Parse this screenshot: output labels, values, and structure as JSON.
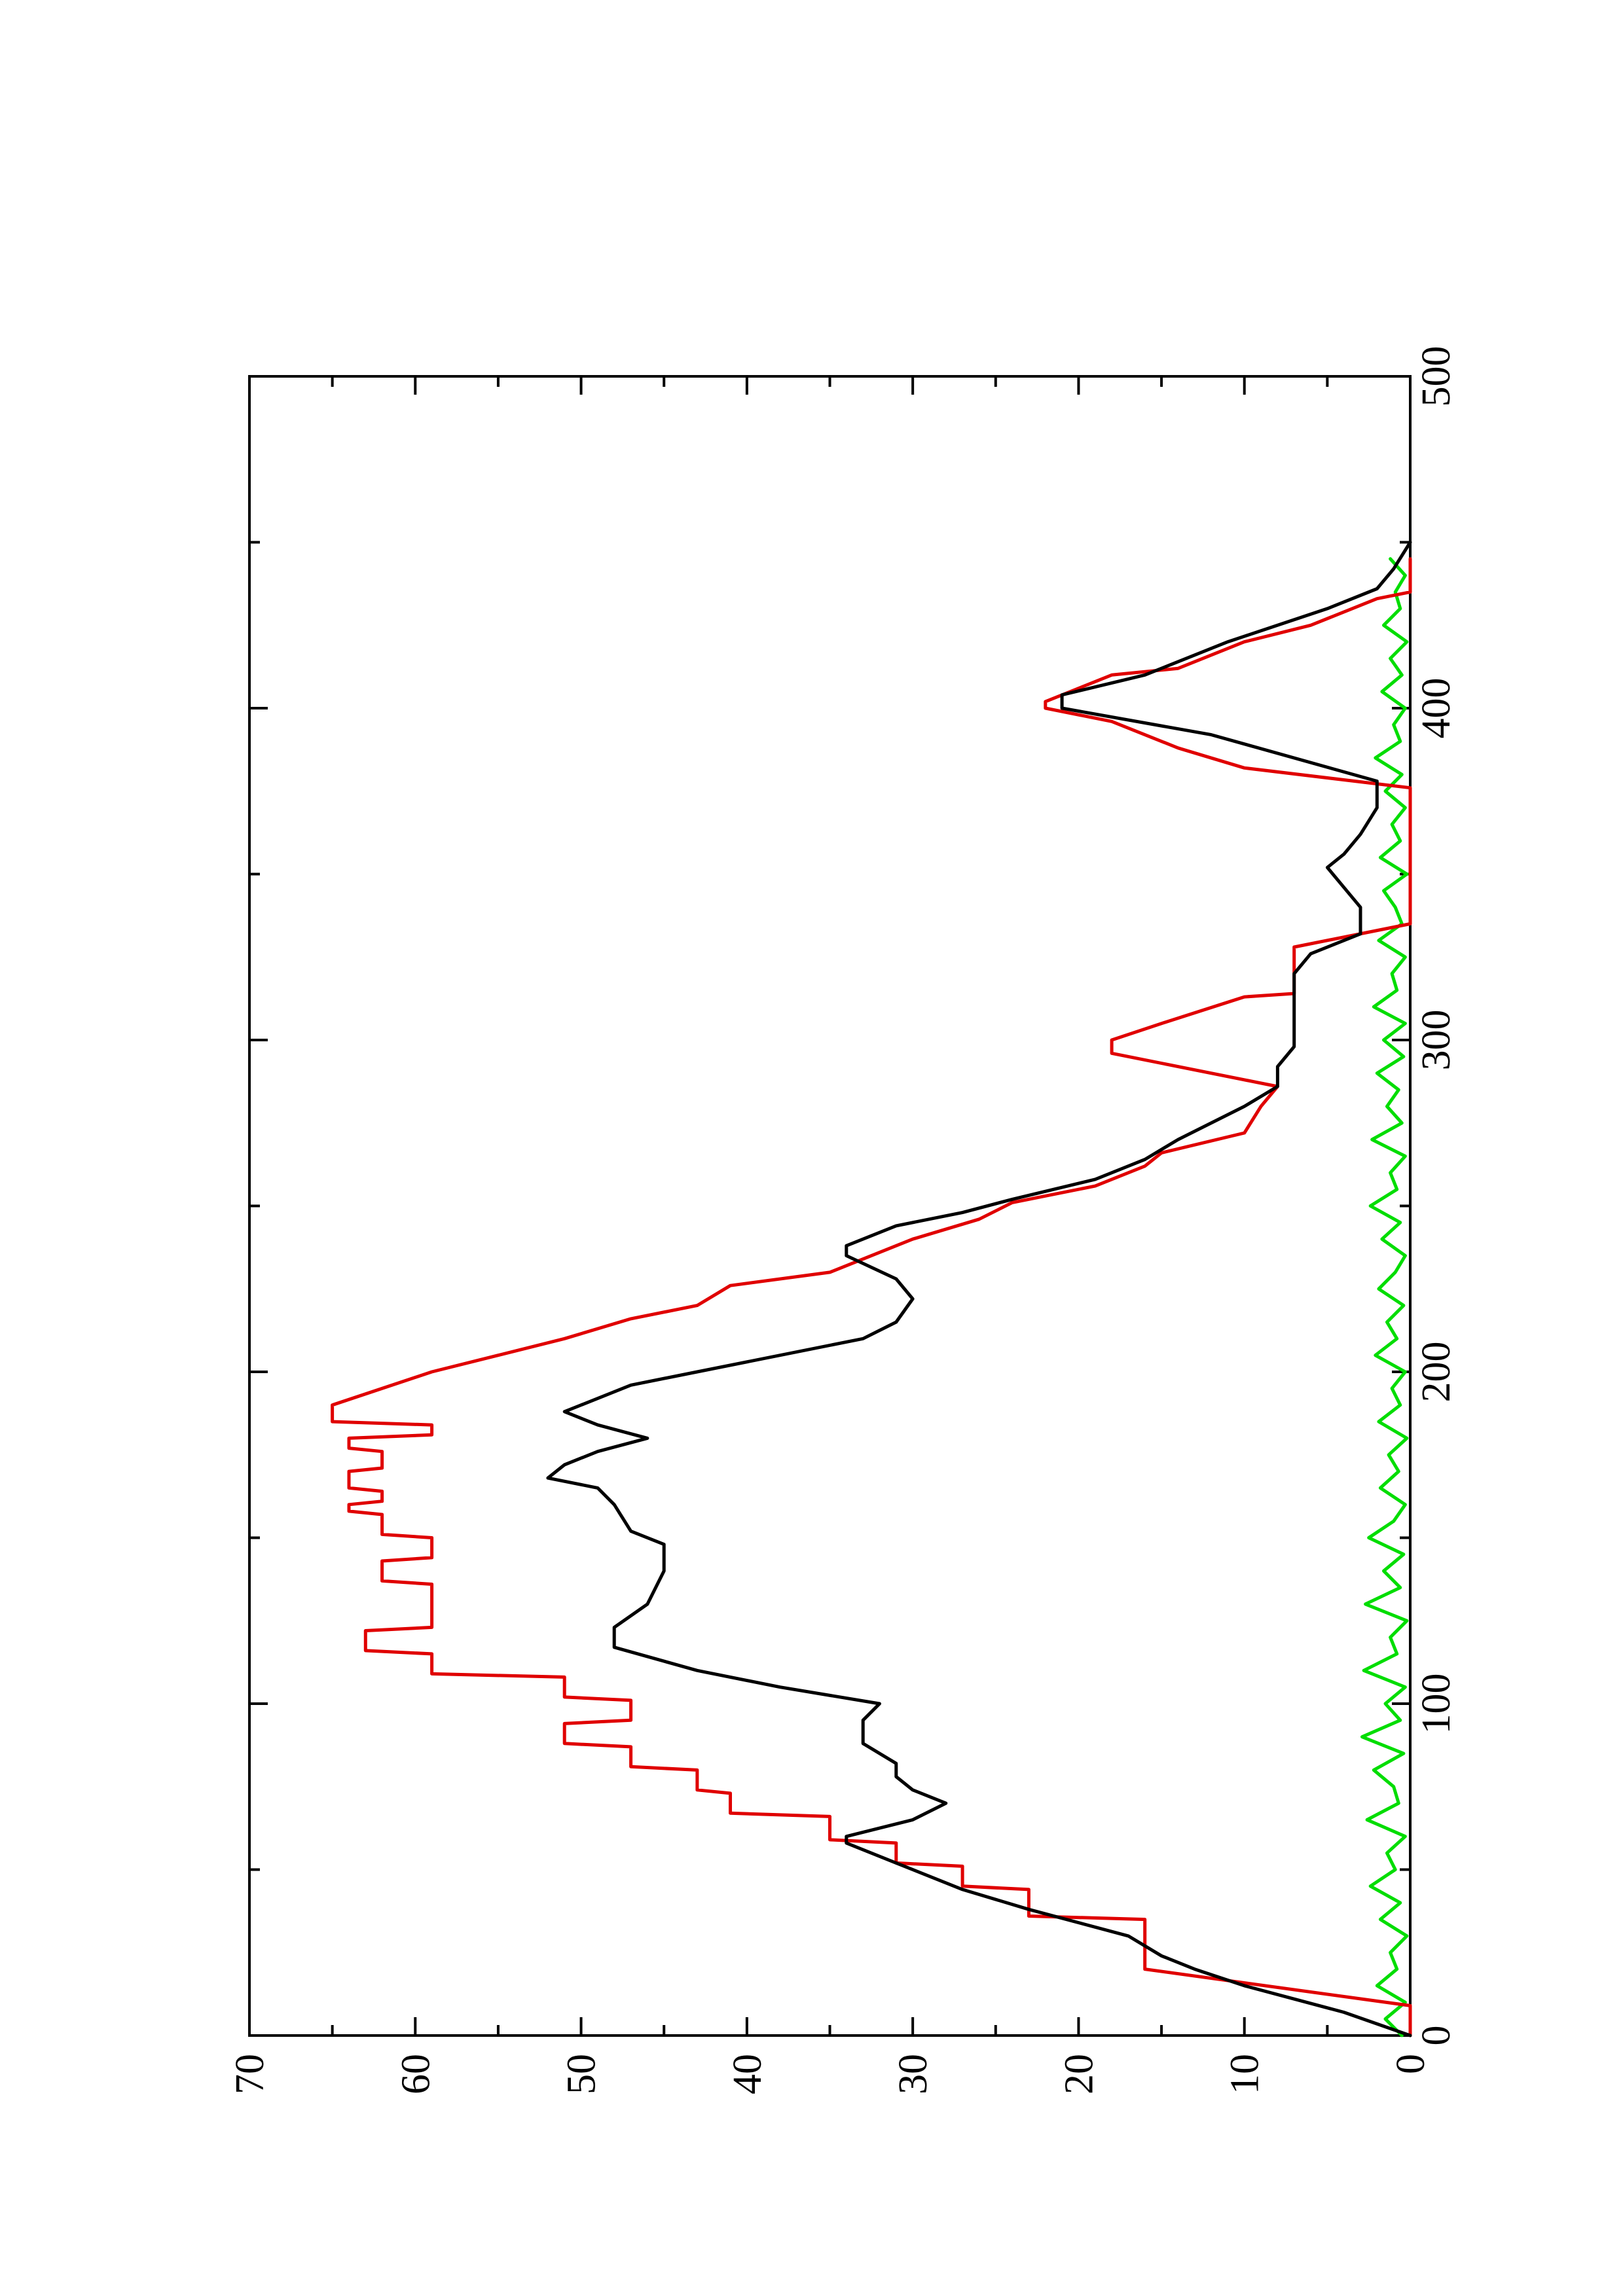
{
  "chart_data": {
    "type": "line",
    "orientation": "rotated-90-ccw",
    "title": "",
    "xlabel": "",
    "ylabel": "",
    "xlim": [
      0,
      500
    ],
    "ylim": [
      0,
      70
    ],
    "x_ticks": [
      "0",
      "100",
      "200",
      "300",
      "400",
      "500"
    ],
    "y_ticks": [
      "0",
      "10",
      "20",
      "30",
      "40",
      "50",
      "60",
      "70"
    ],
    "grid": false,
    "legend": "none",
    "series": [
      {
        "color": "#e00000",
        "x": [
          0,
          9,
          20,
          35,
          36,
          44,
          45,
          51,
          52,
          58,
          59,
          66,
          67,
          73,
          74,
          80,
          81,
          87,
          88,
          94,
          95,
          101,
          102,
          108,
          109,
          115,
          116,
          122,
          123,
          129,
          130,
          136,
          137,
          143,
          144,
          150,
          151,
          157,
          158,
          160,
          161,
          164,
          165,
          170,
          171,
          176,
          177,
          180,
          181,
          184,
          185,
          190,
          200,
          205,
          210,
          216,
          220,
          226,
          230,
          240,
          246,
          251,
          256,
          262,
          266,
          272,
          280,
          286,
          296,
          300,
          305,
          313,
          314,
          327,
          328,
          335,
          340,
          376,
          382,
          388,
          396,
          400,
          402,
          410,
          412,
          420,
          425,
          433,
          435,
          445
        ],
        "y": [
          0,
          0,
          16,
          16,
          23,
          23,
          27,
          27,
          31,
          31,
          35,
          35,
          41,
          41,
          43,
          43,
          47,
          47,
          51,
          51,
          47,
          47,
          51,
          51,
          59,
          59,
          63,
          63,
          59,
          59,
          59,
          59,
          62,
          62,
          59,
          59,
          62,
          62,
          64,
          64,
          62,
          62,
          64,
          64,
          62,
          62,
          64,
          64,
          59,
          59,
          65,
          65,
          59,
          55,
          51,
          47,
          43,
          41,
          35,
          30,
          26,
          24,
          19,
          16,
          15,
          10,
          9,
          8,
          18,
          18,
          15,
          10,
          7,
          7,
          7,
          0,
          0,
          0,
          10,
          14,
          18,
          22,
          22,
          18,
          14,
          10,
          6,
          2,
          0,
          0
        ]
      },
      {
        "color": "#000000",
        "x": [
          0,
          7,
          15,
          20,
          24,
          30,
          38,
          44,
          52,
          58,
          60,
          65,
          70,
          74,
          78,
          82,
          88,
          95,
          100,
          105,
          110,
          117,
          123,
          130,
          140,
          148,
          152,
          160,
          165,
          168,
          172,
          176,
          180,
          184,
          188,
          190,
          196,
          200,
          210,
          215,
          222,
          228,
          235,
          238,
          244,
          248,
          252,
          258,
          264,
          270,
          280,
          286,
          292,
          298,
          305,
          312,
          320,
          326,
          332,
          340,
          346,
          352,
          356,
          362,
          370,
          378,
          392,
          400,
          404,
          410,
          420,
          430,
          436,
          442,
          450
        ],
        "y": [
          0,
          4,
          10,
          13,
          15,
          17,
          23,
          27,
          31,
          34,
          34,
          30,
          28,
          30,
          31,
          31,
          33,
          33,
          32,
          38,
          43,
          48,
          48,
          46,
          45,
          45,
          47,
          48,
          49,
          52,
          51,
          49,
          46,
          49,
          51,
          50,
          47,
          43,
          33,
          31,
          30,
          31,
          34,
          34,
          31,
          27,
          24,
          19,
          16,
          14,
          10,
          8,
          8,
          7,
          7,
          7,
          7,
          6,
          3,
          3,
          4,
          5,
          4,
          3,
          2,
          2,
          12,
          21,
          21,
          16,
          11,
          5,
          2,
          1,
          0
        ]
      },
      {
        "color": "#00dd00",
        "x": [
          0,
          5,
          10,
          15,
          20,
          25,
          30,
          35,
          40,
          45,
          50,
          55,
          60,
          65,
          70,
          75,
          80,
          85,
          90,
          95,
          100,
          105,
          110,
          115,
          120,
          125,
          130,
          135,
          140,
          145,
          150,
          155,
          160,
          165,
          170,
          175,
          180,
          185,
          190,
          195,
          200,
          205,
          210,
          215,
          220,
          225,
          230,
          235,
          240,
          245,
          250,
          255,
          260,
          265,
          270,
          275,
          280,
          285,
          290,
          295,
          300,
          305,
          310,
          315,
          320,
          325,
          330,
          335,
          340,
          345,
          350,
          355,
          360,
          365,
          370,
          375,
          380,
          385,
          390,
          395,
          400,
          405,
          410,
          415,
          420,
          425,
          430,
          435,
          440,
          445
        ],
        "y": [
          0.5,
          1.5,
          0.3,
          2.0,
          0.8,
          1.2,
          0.2,
          1.8,
          0.6,
          2.4,
          0.9,
          1.4,
          0.3,
          2.6,
          0.7,
          1.0,
          2.2,
          0.4,
          2.9,
          0.6,
          1.5,
          0.3,
          2.8,
          0.8,
          1.2,
          0.2,
          2.7,
          0.6,
          1.6,
          0.4,
          2.5,
          1.0,
          0.3,
          1.8,
          0.7,
          1.3,
          0.2,
          1.9,
          0.6,
          1.1,
          0.3,
          2.1,
          0.8,
          1.4,
          0.4,
          1.9,
          0.9,
          0.3,
          1.7,
          0.6,
          2.4,
          0.8,
          1.2,
          0.3,
          2.3,
          0.5,
          1.4,
          0.7,
          2.0,
          0.4,
          1.6,
          0.3,
          2.2,
          0.8,
          1.1,
          0.3,
          1.9,
          0.5,
          0.9,
          1.6,
          0.2,
          1.8,
          0.6,
          1.1,
          0.3,
          1.5,
          0.5,
          2.1,
          0.6,
          1.0,
          0.3,
          1.7,
          0.5,
          1.2,
          0.2,
          1.6,
          0.6,
          0.9,
          0.3,
          1.2
        ]
      }
    ]
  }
}
